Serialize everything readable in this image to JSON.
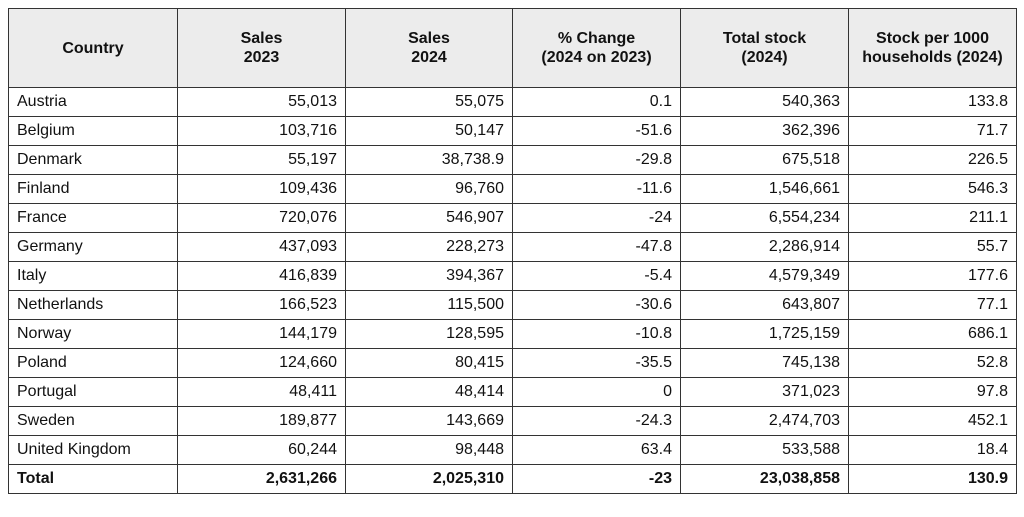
{
  "table": {
    "header": [
      [
        "Country"
      ],
      [
        "Sales",
        "2023"
      ],
      [
        "Sales",
        "2024"
      ],
      [
        "% Change",
        "(2024 on 2023)"
      ],
      [
        "Total stock",
        "(2024)"
      ],
      [
        "Stock per 1000",
        "households (2024)"
      ]
    ],
    "rows": [
      [
        "Austria",
        "55,013",
        "55,075",
        "0.1",
        "540,363",
        "133.8"
      ],
      [
        "Belgium",
        "103,716",
        "50,147",
        "-51.6",
        "362,396",
        "71.7"
      ],
      [
        "Denmark",
        "55,197",
        "38,738.9",
        "-29.8",
        "675,518",
        "226.5"
      ],
      [
        "Finland",
        "109,436",
        "96,760",
        "-11.6",
        "1,546,661",
        "546.3"
      ],
      [
        "France",
        "720,076",
        "546,907",
        "-24",
        "6,554,234",
        "211.1"
      ],
      [
        "Germany",
        "437,093",
        "228,273",
        "-47.8",
        "2,286,914",
        "55.7"
      ],
      [
        "Italy",
        "416,839",
        "394,367",
        "-5.4",
        "4,579,349",
        "177.6"
      ],
      [
        "Netherlands",
        "166,523",
        "115,500",
        "-30.6",
        "643,807",
        "77.1"
      ],
      [
        "Norway",
        "144,179",
        "128,595",
        "-10.8",
        "1,725,159",
        "686.1"
      ],
      [
        "Poland",
        "124,660",
        "80,415",
        "-35.5",
        "745,138",
        "52.8"
      ],
      [
        "Portugal",
        "48,411",
        "48,414",
        "0",
        "371,023",
        "97.8"
      ],
      [
        "Sweden",
        "189,877",
        "143,669",
        "-24.3",
        "2,474,703",
        "452.1"
      ],
      [
        "United Kingdom",
        "60,244",
        "98,448",
        "63.4",
        "533,588",
        "18.4"
      ]
    ],
    "total": [
      "Total",
      "2,631,266",
      "2,025,310",
      "-23",
      "23,038,858",
      "130.9"
    ]
  }
}
